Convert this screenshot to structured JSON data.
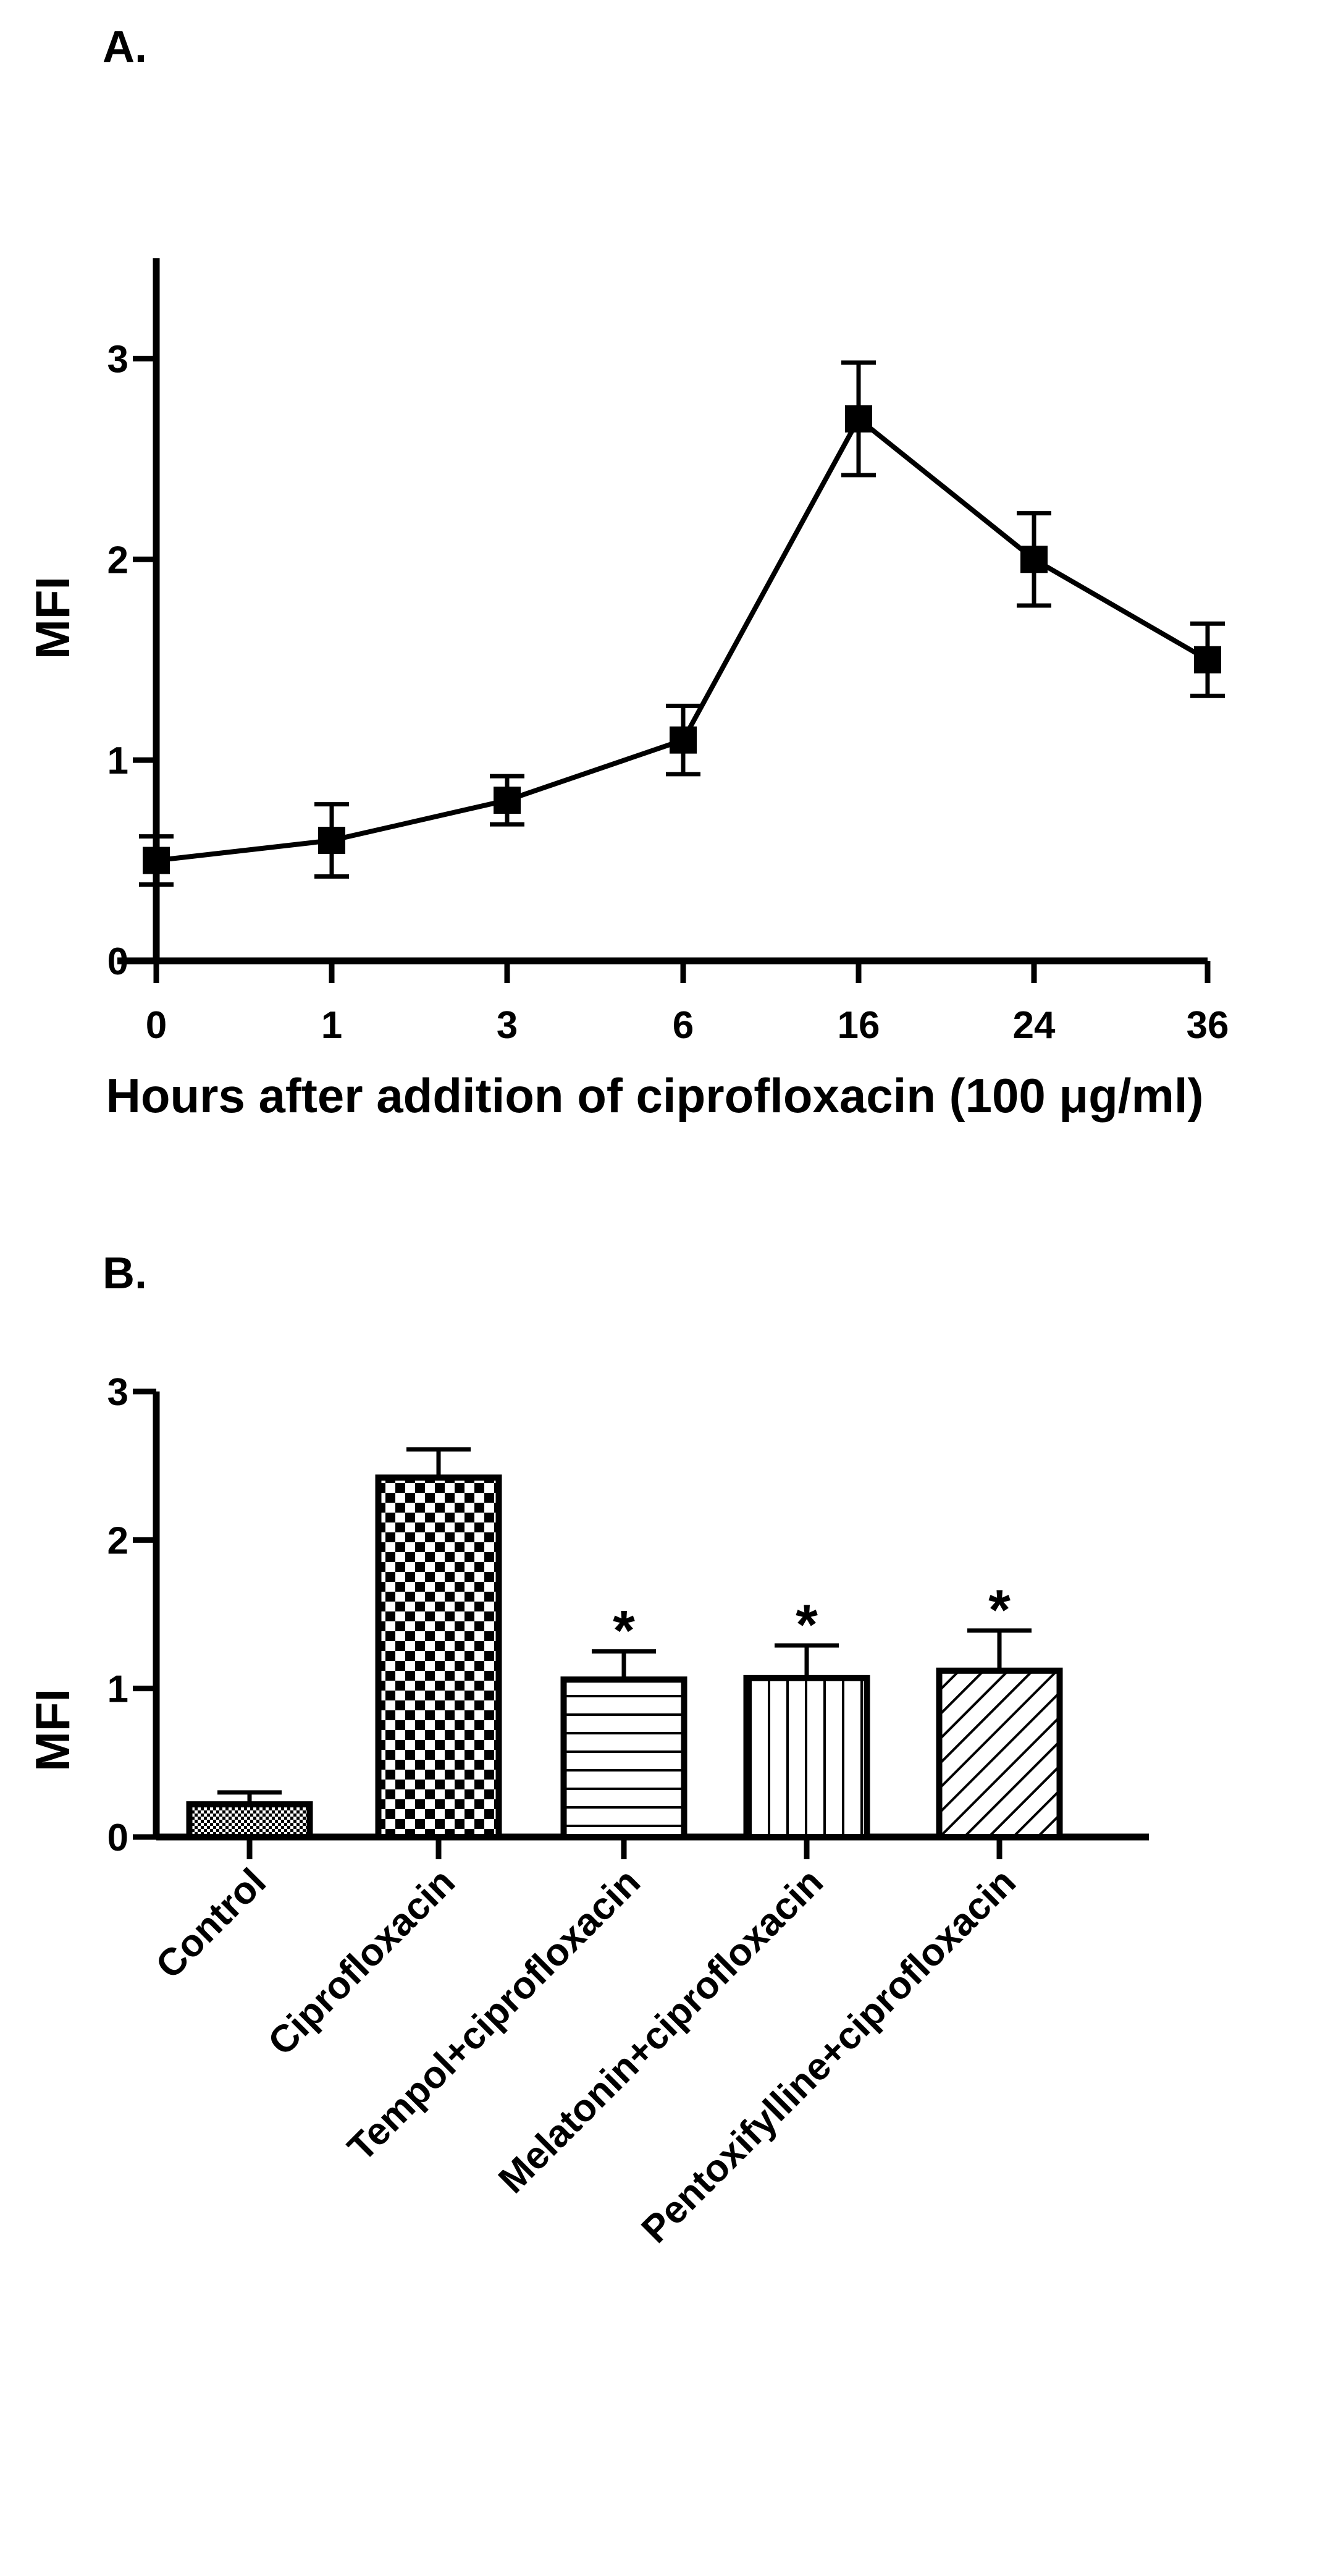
{
  "chart_data": [
    {
      "panel_label": "A.",
      "type": "line",
      "x": [
        "0",
        "1",
        "3",
        "6",
        "16",
        "24",
        "36"
      ],
      "series": [
        {
          "values": [
            0.5,
            0.6,
            0.8,
            1.1,
            2.7,
            2.0,
            1.5
          ],
          "error": [
            0.12,
            0.18,
            0.12,
            0.17,
            0.28,
            0.23,
            0.18
          ]
        }
      ],
      "xlabel": "Hours after addition of ciprofloxacin (100  μg/ml)",
      "ylabel": "MFI",
      "ylim": [
        0,
        3.5
      ],
      "yticks": [
        "0",
        "1",
        "2",
        "3"
      ],
      "grid": false,
      "marker": "square",
      "color": "#000000"
    },
    {
      "panel_label": "B.",
      "type": "bar",
      "categories": [
        "Control",
        "Ciprofloxacin",
        "Tempol+ciprofloxacin",
        "Melatonin+ciprofloxacin",
        "Pentoxifylline+ciprofloxacin"
      ],
      "values": [
        0.22,
        2.42,
        1.06,
        1.07,
        1.12
      ],
      "error": [
        0.08,
        0.19,
        0.19,
        0.22,
        0.27
      ],
      "annotations": [
        "",
        "",
        "*",
        "*",
        "*"
      ],
      "patterns": [
        "fine-check",
        "checker",
        "horizontal",
        "vertical",
        "diagonal"
      ],
      "ylabel": "MFI",
      "ylim": [
        0,
        3
      ],
      "yticks": [
        "0",
        "1",
        "2",
        "3"
      ],
      "grid": false,
      "color": "#000000"
    }
  ]
}
